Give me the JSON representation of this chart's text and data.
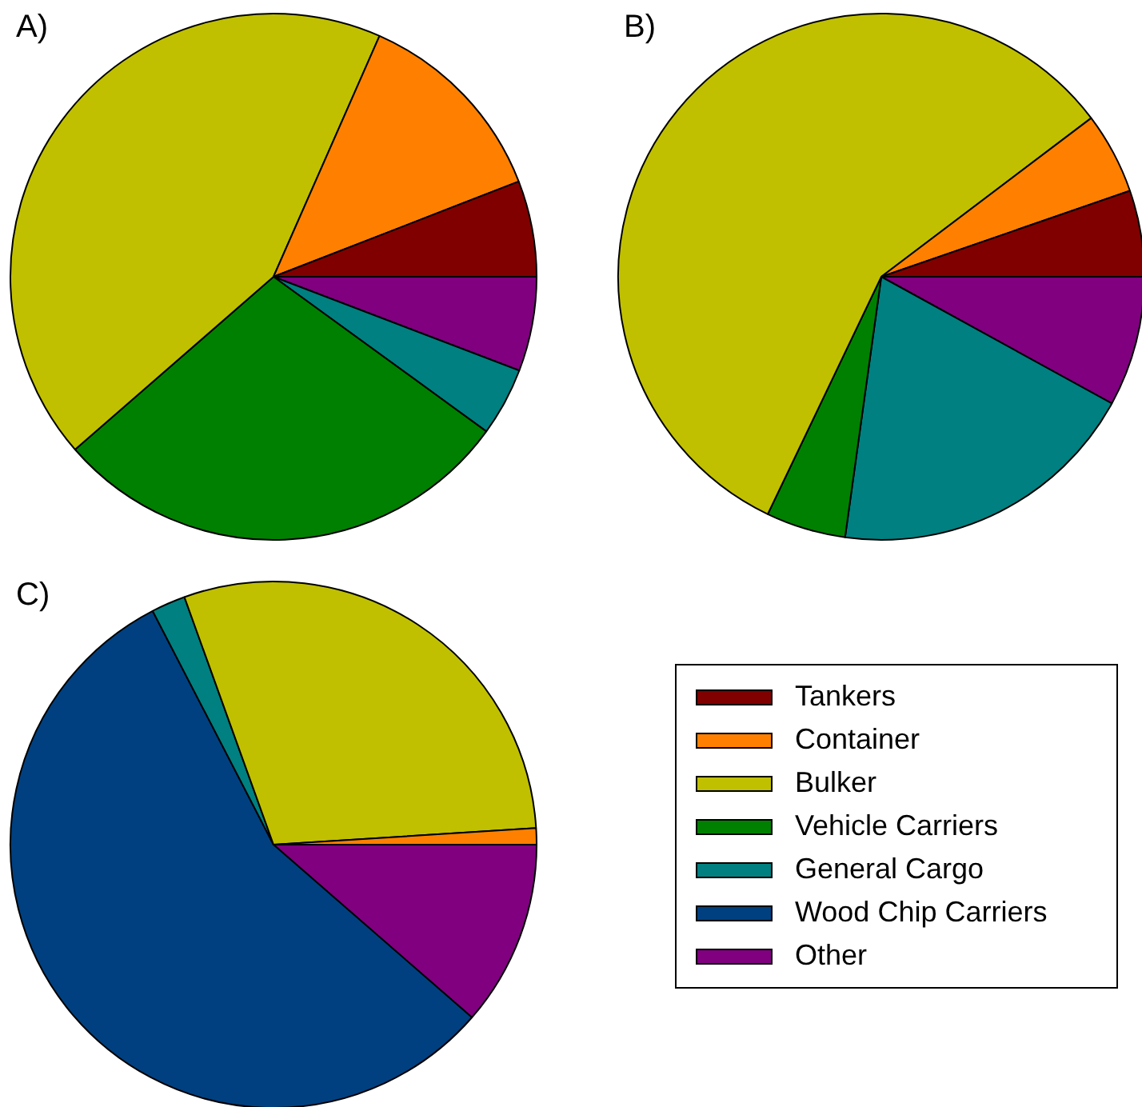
{
  "chart_data": [
    {
      "type": "pie",
      "title": "A)",
      "categories": [
        null,
        null,
        null,
        null,
        null,
        null
      ],
      "values": [
        5.9,
        12.5,
        43,
        28.6,
        4.2,
        5.8
      ],
      "colors": [
        "#800000",
        "#ff8000",
        "#c0c000",
        "#008000",
        "#008080",
        "#800080"
      ]
    },
    {
      "type": "pie",
      "title": "B)",
      "categories": [
        null,
        null,
        null,
        null,
        null,
        null
      ],
      "values": [
        5.3,
        5,
        57.6,
        4.9,
        19.2,
        8
      ],
      "colors": [
        "#800000",
        "#ff8000",
        "#c0c000",
        "#008000",
        "#008080",
        "#800080"
      ]
    },
    {
      "type": "pie",
      "title": "C)",
      "categories": [
        "Tankers",
        "Container",
        "Bulker",
        "Vehicle Carriers",
        "General Cargo",
        "Wood Chip Carriers",
        "Other"
      ],
      "values": [
        0,
        1,
        29.5,
        0,
        2.1,
        56,
        11.4
      ],
      "colors": [
        "#800000",
        "#ff8000",
        "#c0c000",
        "#008000",
        "#008080",
        "#004080",
        "#800080"
      ],
      "legend": "right"
    }
  ]
}
